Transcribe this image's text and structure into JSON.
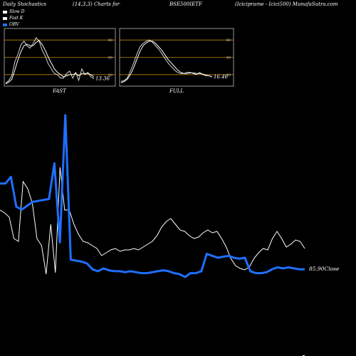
{
  "header": {
    "title": "Daily Stochastics",
    "params": "(14,3,3) Charts for",
    "symbol": "BSE500IETF",
    "company": "(Iciciprame - Icici500) MunafaSutra.com"
  },
  "legend": [
    {
      "label": "Slow  D",
      "color": "#ffffff"
    },
    {
      "label": "Fast K",
      "color": "#ffffff"
    },
    {
      "label": "OBV",
      "color": "#1f6fff"
    }
  ],
  "panels": {
    "fast": {
      "label": "FAST",
      "value_label": "13.36",
      "ticks": [
        "80",
        "50",
        "20"
      ],
      "k": [
        5,
        10,
        18,
        42,
        55,
        72,
        78,
        70,
        66,
        74,
        84,
        78,
        62,
        52,
        38,
        30,
        22,
        20,
        14,
        14,
        22,
        26,
        14,
        24,
        10,
        30,
        20,
        24,
        16,
        13
      ],
      "d": [
        4,
        7,
        12,
        28,
        45,
        60,
        70,
        73,
        70,
        70,
        76,
        79,
        72,
        62,
        50,
        40,
        30,
        24,
        20,
        16,
        18,
        20,
        20,
        22,
        18,
        22,
        22,
        22,
        20,
        16
      ]
    },
    "full": {
      "label": "FULL",
      "value_label": "16.46",
      "ticks": [
        "80",
        "50",
        "20"
      ],
      "k": [
        8,
        10,
        14,
        26,
        40,
        55,
        68,
        74,
        78,
        80,
        76,
        70,
        64,
        56,
        48,
        40,
        34,
        28,
        24,
        22,
        22,
        24,
        24,
        22,
        20,
        24,
        20,
        18,
        18,
        16
      ],
      "d": [
        6,
        8,
        12,
        20,
        32,
        46,
        60,
        70,
        75,
        78,
        78,
        74,
        68,
        62,
        54,
        46,
        40,
        34,
        28,
        24,
        22,
        22,
        23,
        23,
        22,
        22,
        21,
        19,
        18,
        16
      ]
    }
  },
  "chart_data": {
    "type": "line",
    "title": "",
    "xlabel": "",
    "ylabel": "",
    "close_label": "85.90Close",
    "series": [
      {
        "name": "OBV",
        "color": "#1f6fff",
        "values": [
          219,
          219,
          226,
          195,
          192,
          196,
          200,
          201,
          202,
          203,
          240,
          158,
          290,
          140,
          139,
          138,
          136,
          130,
          128,
          131,
          129,
          128,
          128,
          127,
          128,
          127,
          126,
          126,
          127,
          128,
          129,
          128,
          126,
          125,
          122,
          126,
          126,
          128,
          146,
          144,
          142,
          143,
          144,
          142,
          141,
          142,
          128,
          126,
          126,
          127,
          130,
          132,
          131,
          132,
          131,
          130,
          130
        ]
      },
      {
        "name": "Price",
        "color": "#ffffff",
        "values": [
          140,
          138,
          135,
          120,
          118,
          160,
          155,
          145,
          120,
          115,
          95,
          130,
          96,
          170,
          140,
          140,
          130,
          123,
          118,
          117,
          115,
          113,
          108,
          110,
          112,
          113,
          111,
          112,
          112,
          113,
          112,
          114,
          116,
          118,
          122,
          128,
          132,
          134,
          130,
          126,
          125,
          122,
          120,
          121,
          124,
          126,
          124,
          125,
          120,
          114,
          106,
          101,
          99,
          98,
          100,
          106,
          110,
          113,
          112,
          120,
          125,
          120,
          114,
          116,
          119,
          118,
          113
        ]
      }
    ]
  }
}
